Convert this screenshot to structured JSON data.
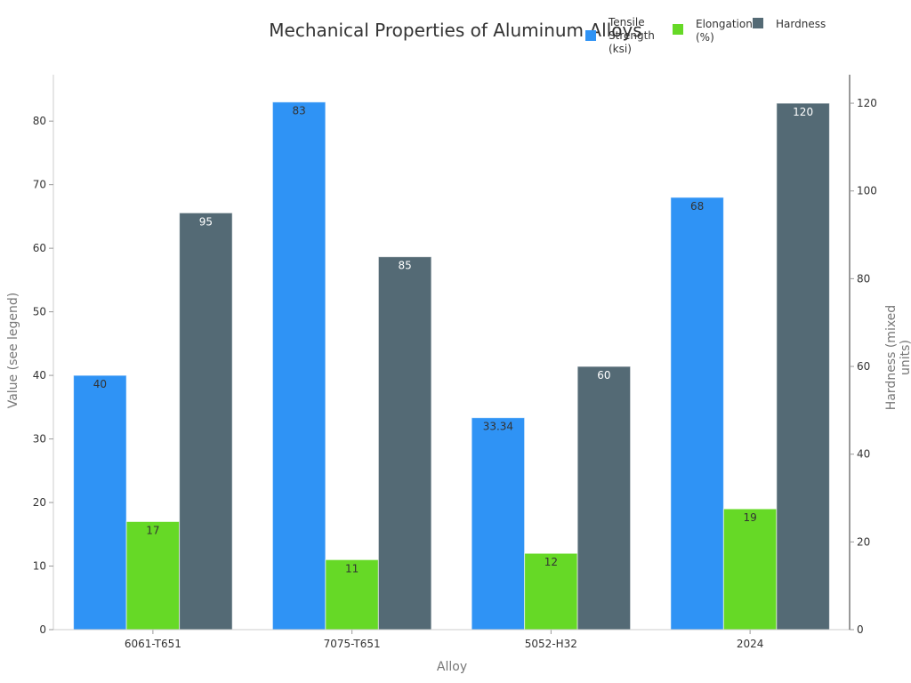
{
  "chart_data": {
    "type": "bar",
    "title": "Mechanical Properties of Aluminum Alloys",
    "xlabel": "Alloy",
    "ylabel": "Value (see legend)",
    "ylabel_right": "Hardness (mixed units)",
    "categories": [
      "6061-T651",
      "7075-T651",
      "5052-H32",
      "2024"
    ],
    "series": [
      {
        "name": "Tensile Strength (ksi)",
        "axis": "left",
        "color": "#2f93f5",
        "values": [
          40,
          83,
          33.34,
          68
        ],
        "labels": [
          "40",
          "83",
          "33.34",
          "68"
        ]
      },
      {
        "name": "Elongation (%)",
        "axis": "left",
        "color": "#66d926",
        "values": [
          17,
          11,
          12,
          19
        ],
        "labels": [
          "17",
          "11",
          "12",
          "19"
        ]
      },
      {
        "name": "Hardness",
        "axis": "right",
        "color": "#546a75",
        "values": [
          95,
          85,
          60,
          120
        ],
        "labels": [
          "95",
          "85",
          "60",
          "120"
        ]
      }
    ],
    "ylim": [
      0,
      87.3
    ],
    "ylim_right": [
      0,
      126.5
    ],
    "yticks": [
      0,
      10,
      20,
      30,
      40,
      50,
      60,
      70,
      80
    ],
    "yticks_right": [
      0,
      20,
      40,
      60,
      80,
      100,
      120
    ],
    "grid": false,
    "legend_position": "top-right"
  },
  "legend": {
    "items": [
      {
        "label_lines": [
          "Tensile",
          "Strength",
          "(ksi)"
        ],
        "color": "#2f93f5"
      },
      {
        "label_lines": [
          "Elongation",
          "(%)"
        ],
        "color": "#66d926"
      },
      {
        "label_lines": [
          "Hardness"
        ],
        "color": "#546a75"
      }
    ]
  }
}
